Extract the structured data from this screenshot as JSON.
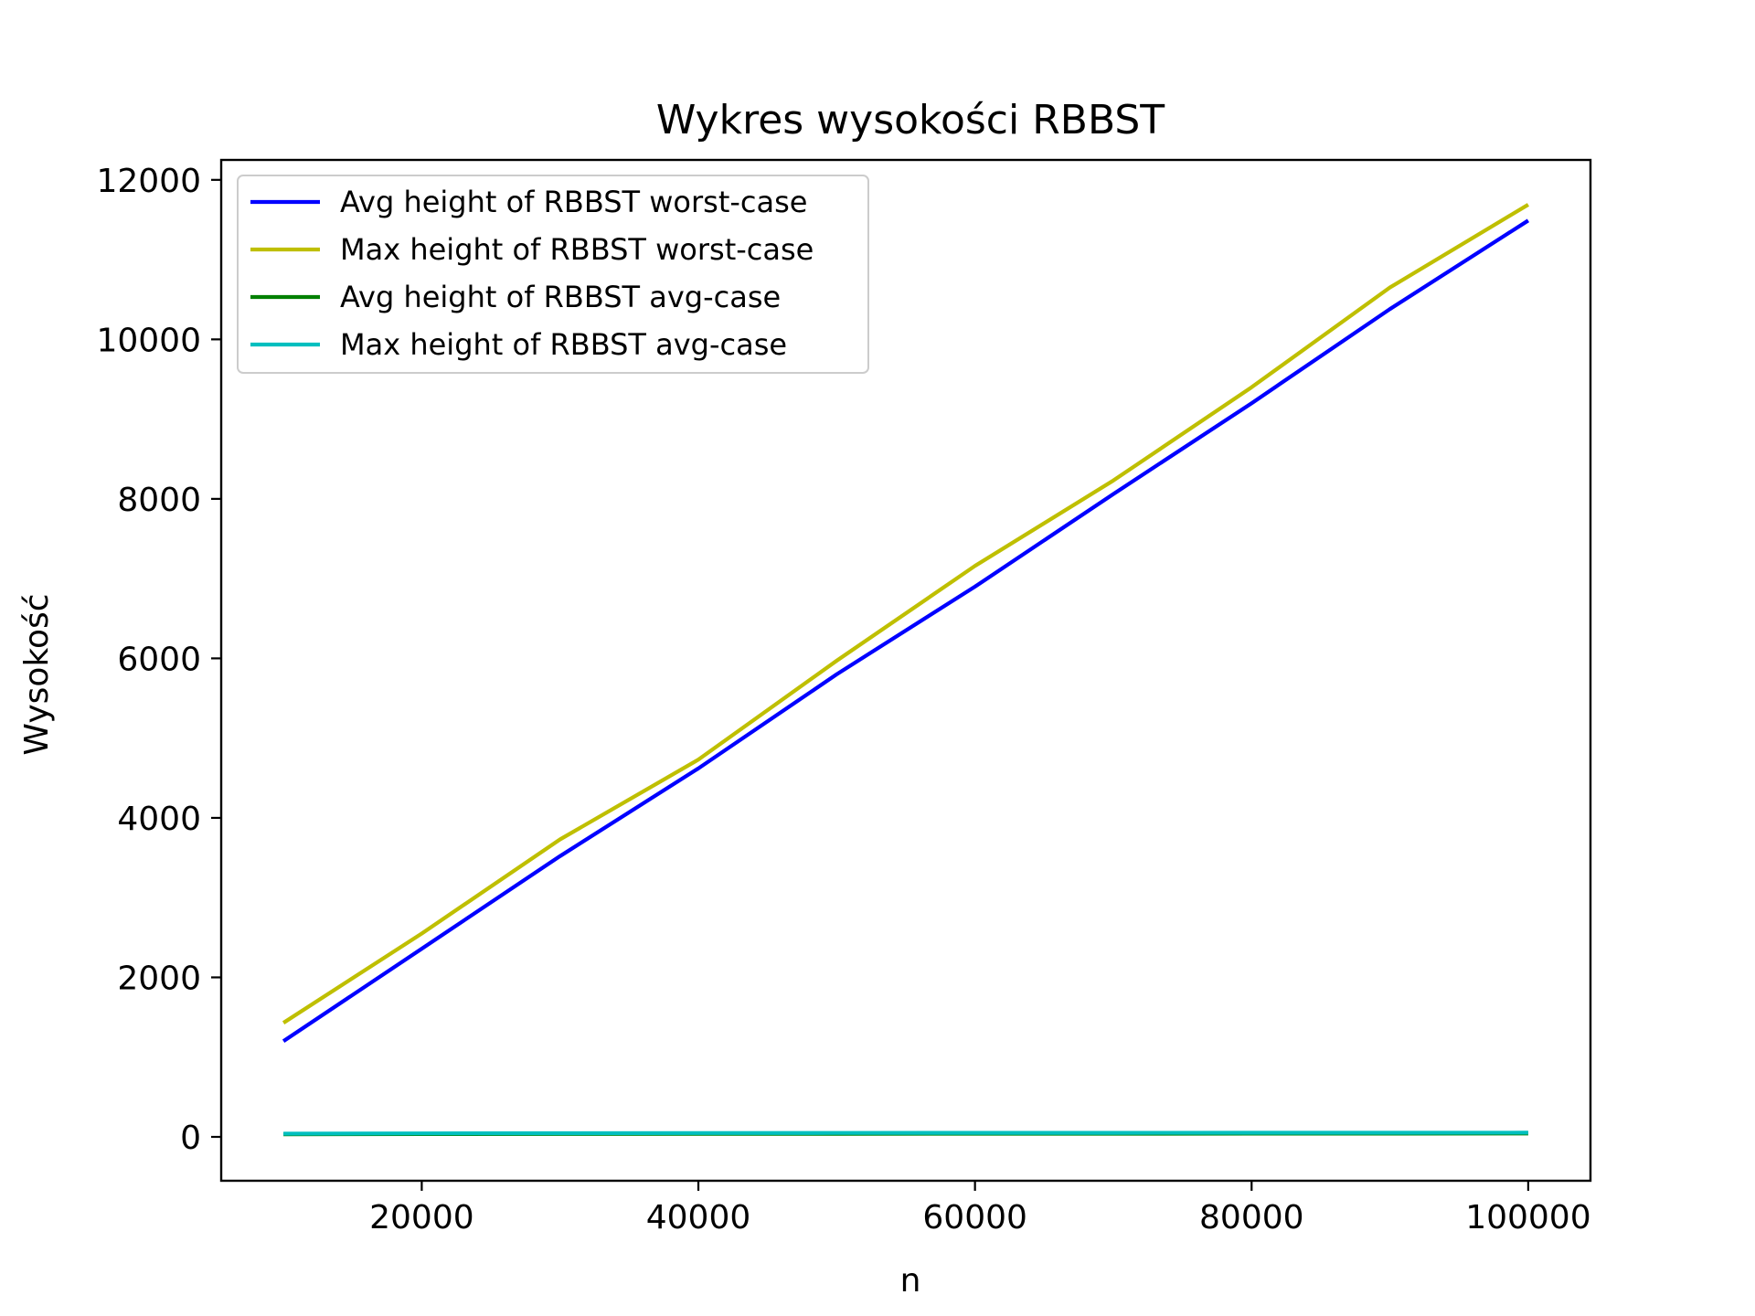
{
  "chart_data": {
    "type": "line",
    "title": "Wykres wysokości RBBST",
    "xlabel": "n",
    "ylabel": "Wysokość",
    "xlim": [
      5500,
      104500
    ],
    "ylim": [
      -550,
      12250
    ],
    "xticks": [
      20000,
      40000,
      60000,
      80000,
      100000
    ],
    "yticks": [
      0,
      2000,
      4000,
      6000,
      8000,
      10000,
      12000
    ],
    "grid": false,
    "legend_position": "top-left",
    "x": [
      10000,
      20000,
      30000,
      40000,
      50000,
      60000,
      70000,
      80000,
      90000,
      100000
    ],
    "series": [
      {
        "name": "Avg height of RBBST worst-case",
        "color": "#0000ff",
        "values": [
          1200,
          2360,
          3520,
          4620,
          5800,
          6900,
          8060,
          9200,
          10380,
          11490
        ]
      },
      {
        "name": "Max height of RBBST worst-case",
        "color": "#bfbf00",
        "values": [
          1430,
          2550,
          3730,
          4730,
          5970,
          7160,
          8230,
          9400,
          10650,
          11690
        ]
      },
      {
        "name": "Avg height of RBBST avg-case",
        "color": "#008000",
        "values": [
          33,
          36,
          37,
          38,
          39,
          40,
          40,
          41,
          41,
          42
        ]
      },
      {
        "name": "Max height of RBBST avg-case",
        "color": "#00bfbf",
        "values": [
          40,
          44,
          46,
          48,
          49,
          50,
          51,
          52,
          52,
          53
        ]
      }
    ]
  }
}
